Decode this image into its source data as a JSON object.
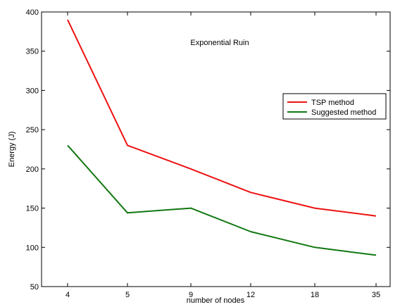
{
  "chart_data": {
    "type": "line",
    "title": "Exponential Ruin",
    "xlabel": "number of nodes",
    "ylabel": "Energy (J)",
    "categories": [
      "4",
      "5",
      "9",
      "12",
      "18",
      "35"
    ],
    "ylim": [
      50,
      400
    ],
    "yticks": [
      50,
      100,
      150,
      200,
      250,
      300,
      350,
      400
    ],
    "grid": false,
    "legend_position": "right",
    "series": [
      {
        "name": "TSP method",
        "color": "#ee1111",
        "values": [
          390,
          230,
          200,
          170,
          150,
          140
        ]
      },
      {
        "name": "Suggested method",
        "color": "#117711",
        "values": [
          230,
          144,
          150,
          120,
          100,
          90
        ]
      }
    ]
  }
}
